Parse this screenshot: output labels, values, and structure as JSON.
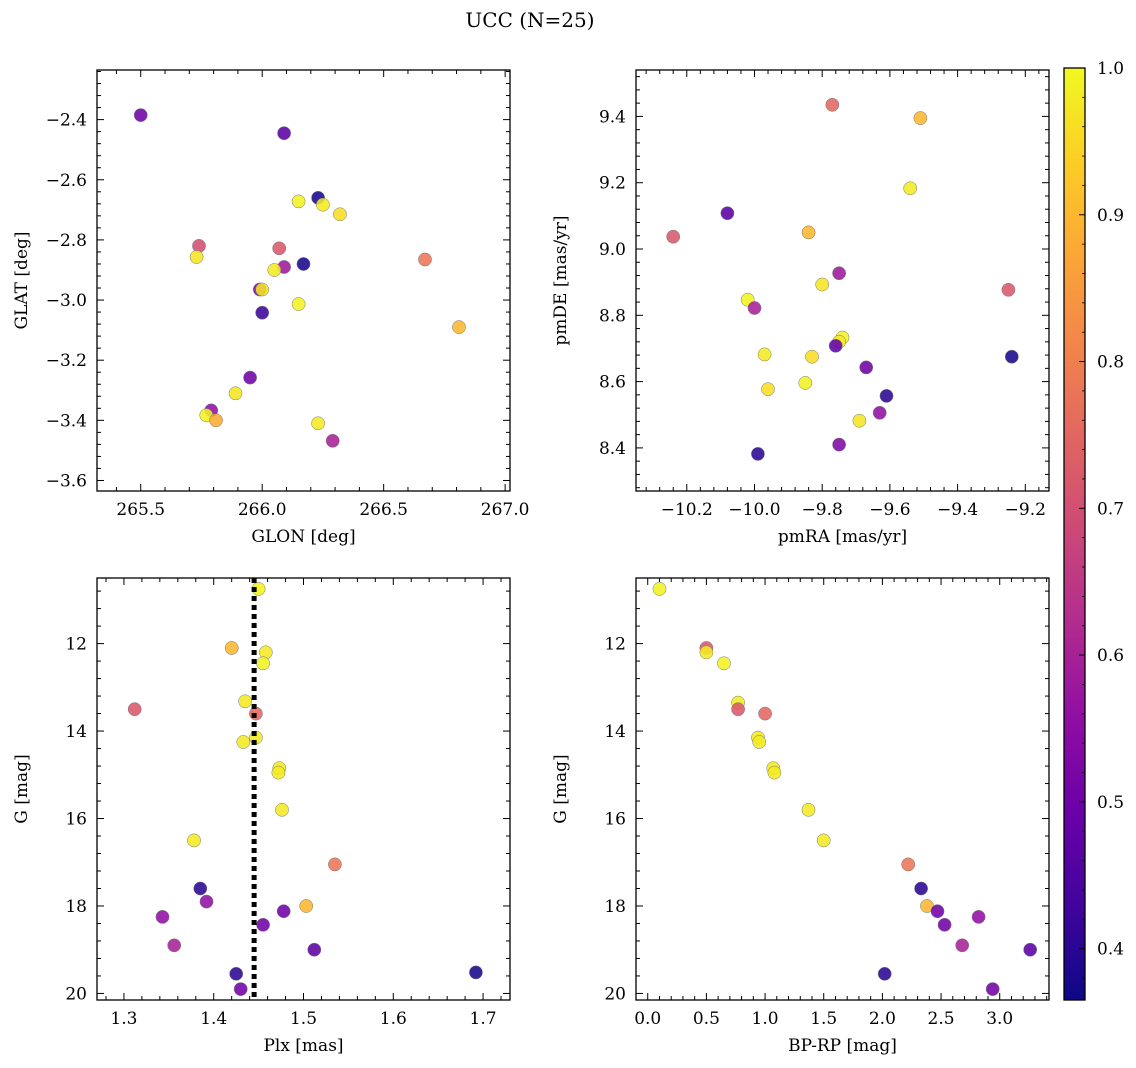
{
  "figure": {
    "title": "UCC (N=25)"
  },
  "chart_data": [
    {
      "type": "scatter",
      "xlabel": "GLON [deg]",
      "ylabel": "GLAT [deg]",
      "xlim": [
        265.32,
        267.02
      ],
      "ylim": [
        -3.635,
        -2.235
      ],
      "xticks": [
        265.5,
        266.0,
        266.5,
        267.0
      ],
      "xticklabels": [
        "265.5",
        "266.0",
        "266.5",
        "267.0"
      ],
      "yticks": [
        -3.6,
        -3.4,
        -3.2,
        -3.0,
        -2.8,
        -2.6,
        -2.4
      ],
      "yticklabels": [
        "−3.6",
        "−3.4",
        "−3.2",
        "−3.0",
        "−2.8",
        "−2.6",
        "−2.4"
      ],
      "y_inverted": false,
      "points": [
        {
          "x": 265.5,
          "y": -2.385,
          "c": 0.5
        },
        {
          "x": 266.09,
          "y": -2.445,
          "c": 0.47
        },
        {
          "x": 266.23,
          "y": -2.66,
          "c": 0.38
        },
        {
          "x": 266.15,
          "y": -2.672,
          "c": 0.99
        },
        {
          "x": 266.25,
          "y": -2.683,
          "c": 0.98
        },
        {
          "x": 266.32,
          "y": -2.715,
          "c": 0.96
        },
        {
          "x": 265.74,
          "y": -2.82,
          "c": 0.7
        },
        {
          "x": 266.07,
          "y": -2.828,
          "c": 0.72
        },
        {
          "x": 265.73,
          "y": -2.857,
          "c": 0.97
        },
        {
          "x": 266.67,
          "y": -2.865,
          "c": 0.78
        },
        {
          "x": 266.17,
          "y": -2.88,
          "c": 0.38
        },
        {
          "x": 266.09,
          "y": -2.89,
          "c": 0.58
        },
        {
          "x": 266.05,
          "y": -2.9,
          "c": 0.98
        },
        {
          "x": 265.99,
          "y": -2.965,
          "c": 0.52
        },
        {
          "x": 266.0,
          "y": -2.965,
          "c": 0.97
        },
        {
          "x": 266.15,
          "y": -3.013,
          "c": 0.99
        },
        {
          "x": 266.0,
          "y": -3.042,
          "c": 0.42
        },
        {
          "x": 266.81,
          "y": -3.09,
          "c": 0.9
        },
        {
          "x": 265.95,
          "y": -3.258,
          "c": 0.5
        },
        {
          "x": 265.89,
          "y": -3.31,
          "c": 0.97
        },
        {
          "x": 265.79,
          "y": -3.367,
          "c": 0.56
        },
        {
          "x": 265.77,
          "y": -3.383,
          "c": 0.99
        },
        {
          "x": 265.81,
          "y": -3.4,
          "c": 0.88
        },
        {
          "x": 266.23,
          "y": -3.41,
          "c": 0.98
        },
        {
          "x": 266.29,
          "y": -3.468,
          "c": 0.6
        }
      ]
    },
    {
      "type": "scatter",
      "xlabel": "pmRA [mas/yr]",
      "ylabel": "pmDE [mas/yr]",
      "xlim": [
        -10.35,
        -9.13
      ],
      "ylim": [
        8.27,
        9.54
      ],
      "xticks": [
        -10.2,
        -10.0,
        -9.8,
        -9.6,
        -9.4,
        -9.2
      ],
      "xticklabels": [
        "−10.2",
        "−10.0",
        "−9.8",
        "−9.6",
        "−9.4",
        "−9.2"
      ],
      "yticks": [
        8.4,
        8.6,
        8.8,
        9.0,
        9.2,
        9.4
      ],
      "yticklabels": [
        "8.4",
        "8.6",
        "8.8",
        "9.0",
        "9.2",
        "9.4"
      ],
      "y_inverted": false,
      "points": [
        {
          "x": -9.77,
          "y": 9.435,
          "c": 0.75
        },
        {
          "x": -9.51,
          "y": 9.395,
          "c": 0.9
        },
        {
          "x": -9.54,
          "y": 9.183,
          "c": 0.98
        },
        {
          "x": -10.08,
          "y": 9.108,
          "c": 0.47
        },
        {
          "x": -10.24,
          "y": 9.037,
          "c": 0.72
        },
        {
          "x": -9.84,
          "y": 9.05,
          "c": 0.9
        },
        {
          "x": -9.75,
          "y": 8.927,
          "c": 0.58
        },
        {
          "x": -9.8,
          "y": 8.893,
          "c": 0.97
        },
        {
          "x": -9.25,
          "y": 8.877,
          "c": 0.72
        },
        {
          "x": -10.02,
          "y": 8.847,
          "c": 0.99
        },
        {
          "x": -10.0,
          "y": 8.822,
          "c": 0.6
        },
        {
          "x": -9.74,
          "y": 8.733,
          "c": 0.99
        },
        {
          "x": -9.75,
          "y": 8.72,
          "c": 0.98
        },
        {
          "x": -9.76,
          "y": 8.708,
          "c": 0.48
        },
        {
          "x": -9.97,
          "y": 8.682,
          "c": 0.98
        },
        {
          "x": -9.83,
          "y": 8.675,
          "c": 0.96
        },
        {
          "x": -9.24,
          "y": 8.675,
          "c": 0.38
        },
        {
          "x": -9.67,
          "y": 8.643,
          "c": 0.5
        },
        {
          "x": -9.85,
          "y": 8.596,
          "c": 0.99
        },
        {
          "x": -9.96,
          "y": 8.577,
          "c": 0.96
        },
        {
          "x": -9.61,
          "y": 8.557,
          "c": 0.4
        },
        {
          "x": -9.63,
          "y": 8.506,
          "c": 0.56
        },
        {
          "x": -9.69,
          "y": 8.482,
          "c": 0.97
        },
        {
          "x": -9.75,
          "y": 8.41,
          "c": 0.53
        },
        {
          "x": -9.99,
          "y": 8.382,
          "c": 0.4
        }
      ]
    },
    {
      "type": "scatter",
      "xlabel": "Plx [mas]",
      "ylabel": "G [mag]",
      "xlim": [
        1.27,
        1.73
      ],
      "ylim": [
        20.15,
        10.5
      ],
      "xticks": [
        1.3,
        1.4,
        1.5,
        1.6,
        1.7
      ],
      "xticklabels": [
        "1.3",
        "1.4",
        "1.5",
        "1.6",
        "1.7"
      ],
      "yticks": [
        12,
        14,
        16,
        18,
        20
      ],
      "yticklabels": [
        "12",
        "14",
        "16",
        "18",
        "20"
      ],
      "y_inverted": true,
      "vline": {
        "x": 1.445
      },
      "points": [
        {
          "x": 1.45,
          "y": 10.75,
          "c": 0.99
        },
        {
          "x": 1.42,
          "y": 12.1,
          "c": 0.9
        },
        {
          "x": 1.458,
          "y": 12.2,
          "c": 0.98
        },
        {
          "x": 1.455,
          "y": 12.45,
          "c": 0.99
        },
        {
          "x": 1.312,
          "y": 13.5,
          "c": 0.72
        },
        {
          "x": 1.435,
          "y": 13.32,
          "c": 0.98
        },
        {
          "x": 1.447,
          "y": 13.6,
          "c": 0.75
        },
        {
          "x": 1.433,
          "y": 14.25,
          "c": 0.98
        },
        {
          "x": 1.447,
          "y": 14.15,
          "c": 0.98
        },
        {
          "x": 1.473,
          "y": 14.85,
          "c": 0.98
        },
        {
          "x": 1.472,
          "y": 14.95,
          "c": 0.98
        },
        {
          "x": 1.476,
          "y": 15.8,
          "c": 0.98
        },
        {
          "x": 1.378,
          "y": 16.5,
          "c": 0.98
        },
        {
          "x": 1.535,
          "y": 17.05,
          "c": 0.78
        },
        {
          "x": 1.385,
          "y": 17.6,
          "c": 0.4
        },
        {
          "x": 1.392,
          "y": 17.9,
          "c": 0.56
        },
        {
          "x": 1.503,
          "y": 18.0,
          "c": 0.9
        },
        {
          "x": 1.478,
          "y": 18.12,
          "c": 0.5
        },
        {
          "x": 1.343,
          "y": 18.25,
          "c": 0.56
        },
        {
          "x": 1.455,
          "y": 18.43,
          "c": 0.5
        },
        {
          "x": 1.356,
          "y": 18.9,
          "c": 0.6
        },
        {
          "x": 1.512,
          "y": 19.0,
          "c": 0.47
        },
        {
          "x": 1.692,
          "y": 19.52,
          "c": 0.38
        },
        {
          "x": 1.425,
          "y": 19.55,
          "c": 0.4
        },
        {
          "x": 1.43,
          "y": 19.9,
          "c": 0.5
        }
      ]
    },
    {
      "type": "scatter",
      "xlabel": "BP-RP [mag]",
      "ylabel": "G [mag]",
      "xlim": [
        -0.1,
        3.42
      ],
      "ylim": [
        20.15,
        10.5
      ],
      "xticks": [
        0.0,
        0.5,
        1.0,
        1.5,
        2.0,
        2.5,
        3.0
      ],
      "xticklabels": [
        "0.0",
        "0.5",
        "1.0",
        "1.5",
        "2.0",
        "2.5",
        "3.0"
      ],
      "yticks": [
        12,
        14,
        16,
        18,
        20
      ],
      "yticklabels": [
        "12",
        "14",
        "16",
        "18",
        "20"
      ],
      "y_inverted": true,
      "points": [
        {
          "x": 0.1,
          "y": 10.75,
          "c": 0.99
        },
        {
          "x": 0.5,
          "y": 12.1,
          "c": 0.72
        },
        {
          "x": 0.5,
          "y": 12.2,
          "c": 0.98
        },
        {
          "x": 0.65,
          "y": 12.45,
          "c": 0.99
        },
        {
          "x": 0.77,
          "y": 13.35,
          "c": 0.98
        },
        {
          "x": 0.77,
          "y": 13.5,
          "c": 0.72
        },
        {
          "x": 1.0,
          "y": 13.6,
          "c": 0.75
        },
        {
          "x": 0.94,
          "y": 14.15,
          "c": 0.98
        },
        {
          "x": 0.95,
          "y": 14.25,
          "c": 0.98
        },
        {
          "x": 1.07,
          "y": 14.85,
          "c": 0.98
        },
        {
          "x": 1.08,
          "y": 14.95,
          "c": 0.98
        },
        {
          "x": 1.37,
          "y": 15.8,
          "c": 0.98
        },
        {
          "x": 1.5,
          "y": 16.5,
          "c": 0.98
        },
        {
          "x": 2.22,
          "y": 17.05,
          "c": 0.78
        },
        {
          "x": 2.33,
          "y": 17.6,
          "c": 0.4
        },
        {
          "x": 2.38,
          "y": 18.0,
          "c": 0.9
        },
        {
          "x": 2.47,
          "y": 18.12,
          "c": 0.5
        },
        {
          "x": 2.53,
          "y": 18.43,
          "c": 0.5
        },
        {
          "x": 2.82,
          "y": 18.25,
          "c": 0.56
        },
        {
          "x": 2.68,
          "y": 18.9,
          "c": 0.6
        },
        {
          "x": 3.26,
          "y": 19.0,
          "c": 0.47
        },
        {
          "x": 2.02,
          "y": 19.55,
          "c": 0.4
        },
        {
          "x": 2.94,
          "y": 19.9,
          "c": 0.5
        }
      ]
    }
  ],
  "colorbar": {
    "colormap": "plasma",
    "clim": [
      0.365,
      1.0
    ],
    "ticks": [
      0.4,
      0.5,
      0.6,
      0.7,
      0.8,
      0.9,
      1.0
    ],
    "ticklabels": [
      "0.4",
      "0.5",
      "0.6",
      "0.7",
      "0.8",
      "0.9",
      "1.0"
    ]
  }
}
